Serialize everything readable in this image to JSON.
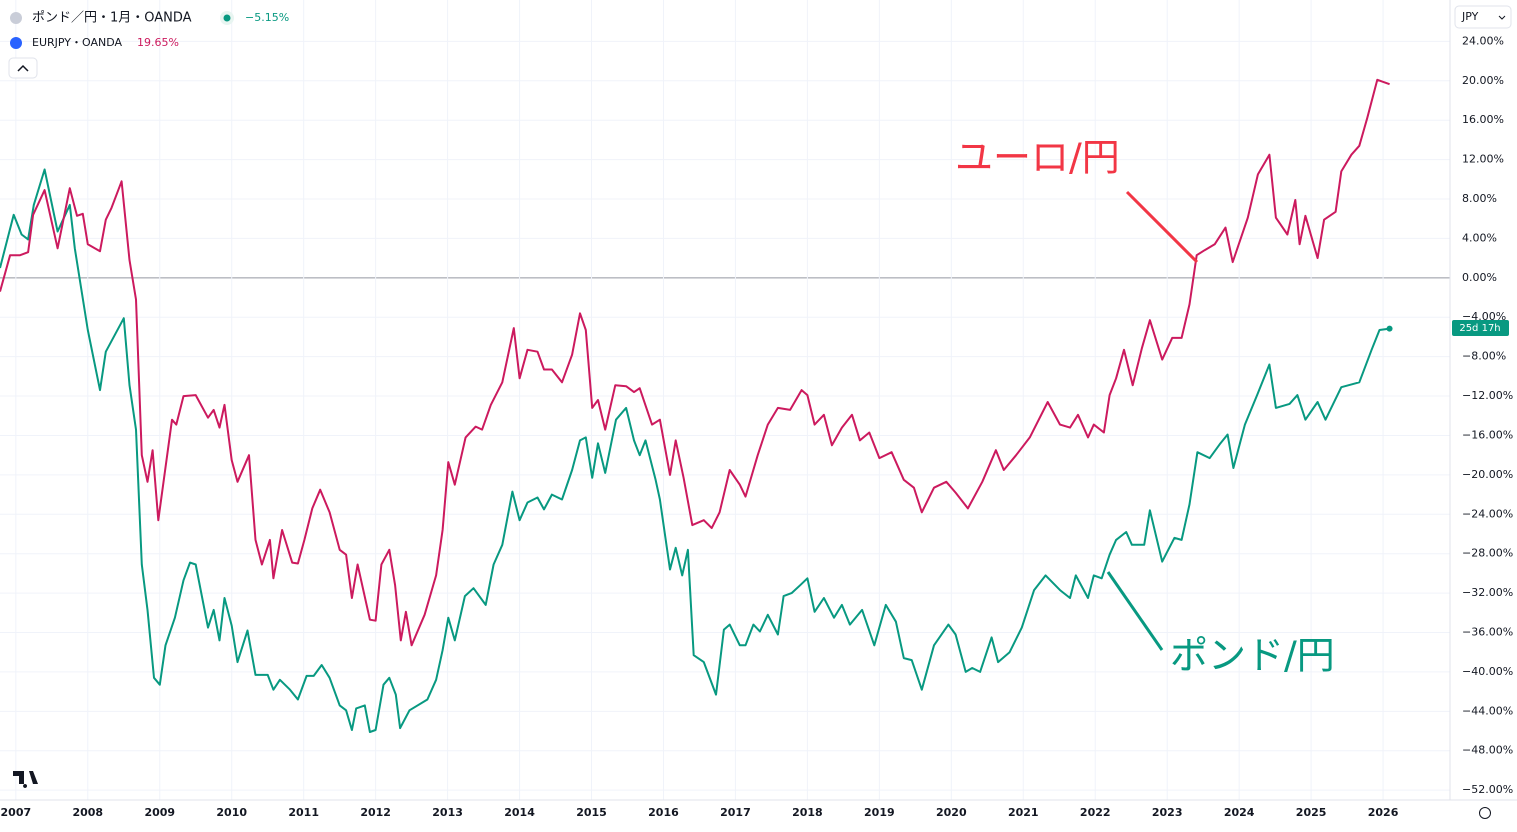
{
  "chart_data": {
    "type": "line",
    "xlim": [
      2006.78,
      2026.93
    ],
    "xticks": [
      2007,
      2008,
      2009,
      2010,
      2011,
      2012,
      2013,
      2014,
      2015,
      2016,
      2017,
      2018,
      2019,
      2020,
      2021,
      2022,
      2023,
      2024,
      2025,
      2026
    ],
    "ylim": [
      -53,
      28.2
    ],
    "yticks": [
      {
        "value": 24,
        "label": "24.00%"
      },
      {
        "value": 20,
        "label": "20.00%"
      },
      {
        "value": 16,
        "label": "16.00%"
      },
      {
        "value": 12,
        "label": "12.00%"
      },
      {
        "value": 8,
        "label": "8.00%"
      },
      {
        "value": 4,
        "label": "4.00%"
      },
      {
        "value": 0,
        "label": "0.00%"
      },
      {
        "value": -4,
        "label": "−4.00%"
      },
      {
        "value": -8,
        "label": "−8.00%"
      },
      {
        "value": -12,
        "label": "−12.00%"
      },
      {
        "value": -16,
        "label": "−16.00%"
      },
      {
        "value": -20,
        "label": "−20.00%"
      },
      {
        "value": -24,
        "label": "−24.00%"
      },
      {
        "value": -28,
        "label": "−28.00%"
      },
      {
        "value": -32,
        "label": "−32.00%"
      },
      {
        "value": -36,
        "label": "−36.00%"
      },
      {
        "value": -40,
        "label": "−40.00%"
      },
      {
        "value": -44,
        "label": "−44.00%"
      },
      {
        "value": -48,
        "label": "−48.00%"
      },
      {
        "value": -52,
        "label": "−52.00%"
      }
    ],
    "grid": true,
    "currency": "JPY",
    "countdown": "25d 17h",
    "annotations": [
      {
        "text": "ユーロ/円",
        "color": "#f23645"
      },
      {
        "text": "ポンド/円",
        "color": "#089981"
      }
    ],
    "series": [
      {
        "name": "ポンド／円・1月・OANDA",
        "legend_value": "−5.15%",
        "color": "#089981",
        "x": [
          2006.78,
          2006.97,
          2007.08,
          2007.17,
          2007.25,
          2007.4,
          2007.58,
          2007.75,
          2007.82,
          2008.0,
          2008.17,
          2008.25,
          2008.5,
          2008.58,
          2008.67,
          2008.75,
          2008.83,
          2008.92,
          2009.0,
          2009.08,
          2009.21,
          2009.33,
          2009.42,
          2009.5,
          2009.67,
          2009.75,
          2009.83,
          2009.9,
          2010.0,
          2010.08,
          2010.22,
          2010.33,
          2010.5,
          2010.58,
          2010.67,
          2010.81,
          2010.92,
          2011.04,
          2011.14,
          2011.25,
          2011.36,
          2011.5,
          2011.59,
          2011.67,
          2011.73,
          2011.85,
          2011.92,
          2012.0,
          2012.11,
          2012.19,
          2012.28,
          2012.34,
          2012.47,
          2012.72,
          2012.84,
          2012.93,
          2013.01,
          2013.1,
          2013.24,
          2013.36,
          2013.53,
          2013.64,
          2013.76,
          2013.9,
          2014.0,
          2014.11,
          2014.25,
          2014.34,
          2014.45,
          2014.59,
          2014.73,
          2014.84,
          2014.92,
          2015.01,
          2015.09,
          2015.19,
          2015.34,
          2015.48,
          2015.59,
          2015.67,
          2015.75,
          2015.89,
          2015.95,
          2016.09,
          2016.17,
          2016.26,
          2016.34,
          2016.42,
          2016.56,
          2016.73,
          2016.84,
          2016.92,
          2017.06,
          2017.14,
          2017.25,
          2017.34,
          2017.45,
          2017.59,
          2017.67,
          2017.78,
          2017.9,
          2018.0,
          2018.1,
          2018.23,
          2018.37,
          2018.48,
          2018.59,
          2018.76,
          2018.93,
          2019.09,
          2019.23,
          2019.34,
          2019.45,
          2019.59,
          2019.76,
          2019.96,
          2020.06,
          2020.2,
          2020.29,
          2020.4,
          2020.56,
          2020.65,
          2020.81,
          2020.98,
          2021.15,
          2021.31,
          2021.51,
          2021.65,
          2021.73,
          2021.9,
          2021.98,
          2022.09,
          2022.2,
          2022.29,
          2022.43,
          2022.51,
          2022.68,
          2022.76,
          2022.93,
          2023.1,
          2023.2,
          2023.31,
          2023.42,
          2023.59,
          2023.73,
          2023.84,
          2023.92,
          2024.08,
          2024.25,
          2024.42,
          2024.51,
          2024.7,
          2024.81,
          2024.92,
          2025.09,
          2025.2,
          2025.42,
          2025.67,
          2025.84,
          2025.95,
          2026.09
        ],
        "values": [
          1.0,
          6.4,
          4.4,
          3.9,
          7.4,
          11.0,
          4.7,
          7.4,
          3.0,
          -5.3,
          -11.4,
          -7.5,
          -4.1,
          -10.9,
          -15.4,
          -29.1,
          -33.7,
          -40.6,
          -41.3,
          -37.3,
          -34.5,
          -30.7,
          -28.9,
          -29.1,
          -35.5,
          -33.7,
          -36.8,
          -32.5,
          -35.3,
          -39.0,
          -35.8,
          -40.3,
          -40.3,
          -41.8,
          -40.8,
          -41.8,
          -42.8,
          -40.4,
          -40.4,
          -39.3,
          -40.6,
          -43.4,
          -43.9,
          -45.9,
          -43.7,
          -43.4,
          -46.1,
          -45.9,
          -41.3,
          -40.6,
          -42.3,
          -45.7,
          -43.9,
          -42.8,
          -40.8,
          -37.8,
          -34.5,
          -36.8,
          -32.3,
          -31.5,
          -33.2,
          -29.1,
          -27.1,
          -21.7,
          -24.6,
          -22.8,
          -22.3,
          -23.5,
          -22.0,
          -22.5,
          -19.5,
          -16.5,
          -16.2,
          -20.3,
          -16.8,
          -19.8,
          -14.4,
          -13.2,
          -16.5,
          -18.0,
          -16.5,
          -20.5,
          -22.5,
          -29.6,
          -27.4,
          -30.2,
          -27.6,
          -38.3,
          -39.0,
          -42.3,
          -35.7,
          -35.2,
          -37.3,
          -37.3,
          -35.2,
          -35.9,
          -34.2,
          -36.2,
          -32.3,
          -32.0,
          -31.2,
          -30.5,
          -33.9,
          -32.5,
          -34.5,
          -33.2,
          -35.2,
          -33.7,
          -37.3,
          -33.2,
          -34.9,
          -38.6,
          -38.8,
          -41.8,
          -37.3,
          -35.2,
          -36.2,
          -40.0,
          -39.6,
          -40.0,
          -36.5,
          -39.0,
          -38.0,
          -35.5,
          -31.7,
          -30.2,
          -31.7,
          -32.5,
          -30.2,
          -32.5,
          -30.2,
          -30.5,
          -28.1,
          -26.6,
          -25.8,
          -27.1,
          -27.1,
          -23.6,
          -28.8,
          -26.4,
          -26.6,
          -23.0,
          -17.7,
          -18.3,
          -16.9,
          -15.9,
          -19.3,
          -14.9,
          -11.9,
          -8.8,
          -13.2,
          -12.8,
          -11.9,
          -14.4,
          -12.6,
          -14.4,
          -11.1,
          -10.6,
          -7.3,
          -5.3,
          -5.15
        ]
      },
      {
        "name": "EURJPY・OANDA",
        "legend_value": "19.65%",
        "color": "#cc1a5e",
        "x": [
          2006.78,
          2006.92,
          2007.06,
          2007.17,
          2007.24,
          2007.4,
          2007.58,
          2007.75,
          2007.85,
          2007.93,
          2008.0,
          2008.17,
          2008.25,
          2008.33,
          2008.47,
          2008.58,
          2008.67,
          2008.75,
          2008.83,
          2008.9,
          2008.98,
          2009.17,
          2009.23,
          2009.33,
          2009.5,
          2009.67,
          2009.75,
          2009.83,
          2009.9,
          2010.0,
          2010.08,
          2010.24,
          2010.33,
          2010.42,
          2010.53,
          2010.58,
          2010.7,
          2010.84,
          2010.92,
          2011.01,
          2011.12,
          2011.23,
          2011.36,
          2011.5,
          2011.59,
          2011.67,
          2011.75,
          2011.92,
          2012.0,
          2012.08,
          2012.19,
          2012.27,
          2012.35,
          2012.42,
          2012.5,
          2012.68,
          2012.84,
          2012.93,
          2013.01,
          2013.1,
          2013.25,
          2013.39,
          2013.48,
          2013.6,
          2013.76,
          2013.92,
          2014.0,
          2014.11,
          2014.25,
          2014.34,
          2014.45,
          2014.59,
          2014.73,
          2014.84,
          2014.92,
          2015.01,
          2015.09,
          2015.19,
          2015.33,
          2015.48,
          2015.59,
          2015.67,
          2015.84,
          2015.95,
          2016.09,
          2016.17,
          2016.28,
          2016.4,
          2016.56,
          2016.67,
          2016.78,
          2016.92,
          2017.06,
          2017.14,
          2017.31,
          2017.45,
          2017.59,
          2017.76,
          2017.92,
          2018.0,
          2018.1,
          2018.23,
          2018.34,
          2018.48,
          2018.62,
          2018.73,
          2018.86,
          2019.0,
          2019.17,
          2019.34,
          2019.48,
          2019.59,
          2019.76,
          2019.93,
          2020.06,
          2020.23,
          2020.43,
          2020.62,
          2020.73,
          2020.9,
          2021.09,
          2021.34,
          2021.51,
          2021.65,
          2021.76,
          2021.9,
          2021.98,
          2022.12,
          2022.2,
          2022.29,
          2022.4,
          2022.52,
          2022.65,
          2022.76,
          2022.93,
          2023.07,
          2023.2,
          2023.31,
          2023.41,
          2023.52,
          2023.66,
          2023.81,
          2023.91,
          2024.12,
          2024.26,
          2024.42,
          2024.51,
          2024.67,
          2024.78,
          2024.84,
          2024.92,
          2025.09,
          2025.18,
          2025.34,
          2025.42,
          2025.56,
          2025.67,
          2025.78,
          2025.92,
          2026.09
        ],
        "values": [
          -1.4,
          2.3,
          2.3,
          2.6,
          6.4,
          8.9,
          3.0,
          9.1,
          6.3,
          6.5,
          3.4,
          2.7,
          5.9,
          7.1,
          9.8,
          1.8,
          -2.2,
          -18.0,
          -20.7,
          -17.5,
          -24.6,
          -14.4,
          -14.9,
          -12.0,
          -11.9,
          -14.2,
          -13.4,
          -15.2,
          -12.9,
          -18.5,
          -20.7,
          -18.0,
          -26.6,
          -29.1,
          -26.6,
          -30.5,
          -25.6,
          -28.9,
          -29.0,
          -26.6,
          -23.4,
          -21.5,
          -23.8,
          -27.6,
          -28.1,
          -32.5,
          -29.1,
          -34.7,
          -34.8,
          -29.1,
          -27.6,
          -31.2,
          -36.8,
          -33.9,
          -37.3,
          -34.2,
          -30.2,
          -25.6,
          -18.7,
          -21.0,
          -16.2,
          -15.1,
          -15.4,
          -12.9,
          -10.6,
          -5.1,
          -10.2,
          -7.3,
          -7.5,
          -9.3,
          -9.3,
          -10.6,
          -7.8,
          -3.6,
          -5.3,
          -13.2,
          -12.4,
          -15.4,
          -10.9,
          -11.0,
          -11.6,
          -11.2,
          -14.9,
          -14.4,
          -20.0,
          -16.5,
          -20.3,
          -25.1,
          -24.6,
          -25.4,
          -23.8,
          -19.5,
          -21.0,
          -22.2,
          -18.0,
          -14.9,
          -13.2,
          -13.4,
          -11.4,
          -11.9,
          -14.9,
          -13.9,
          -17.0,
          -15.2,
          -13.9,
          -16.5,
          -15.7,
          -18.3,
          -17.7,
          -20.5,
          -21.3,
          -23.8,
          -21.3,
          -20.7,
          -21.8,
          -23.4,
          -20.7,
          -17.5,
          -19.5,
          -18.0,
          -16.2,
          -12.6,
          -14.9,
          -15.2,
          -13.9,
          -16.2,
          -14.9,
          -15.7,
          -11.9,
          -10.2,
          -7.3,
          -10.9,
          -7.1,
          -4.3,
          -8.3,
          -6.1,
          -6.1,
          -2.7,
          2.3,
          2.8,
          3.4,
          5.1,
          1.6,
          6.1,
          10.5,
          12.5,
          6.1,
          4.4,
          7.9,
          3.4,
          6.3,
          2.0,
          5.9,
          6.7,
          10.8,
          12.5,
          13.4,
          16.2,
          20.1,
          19.65
        ]
      }
    ]
  }
}
